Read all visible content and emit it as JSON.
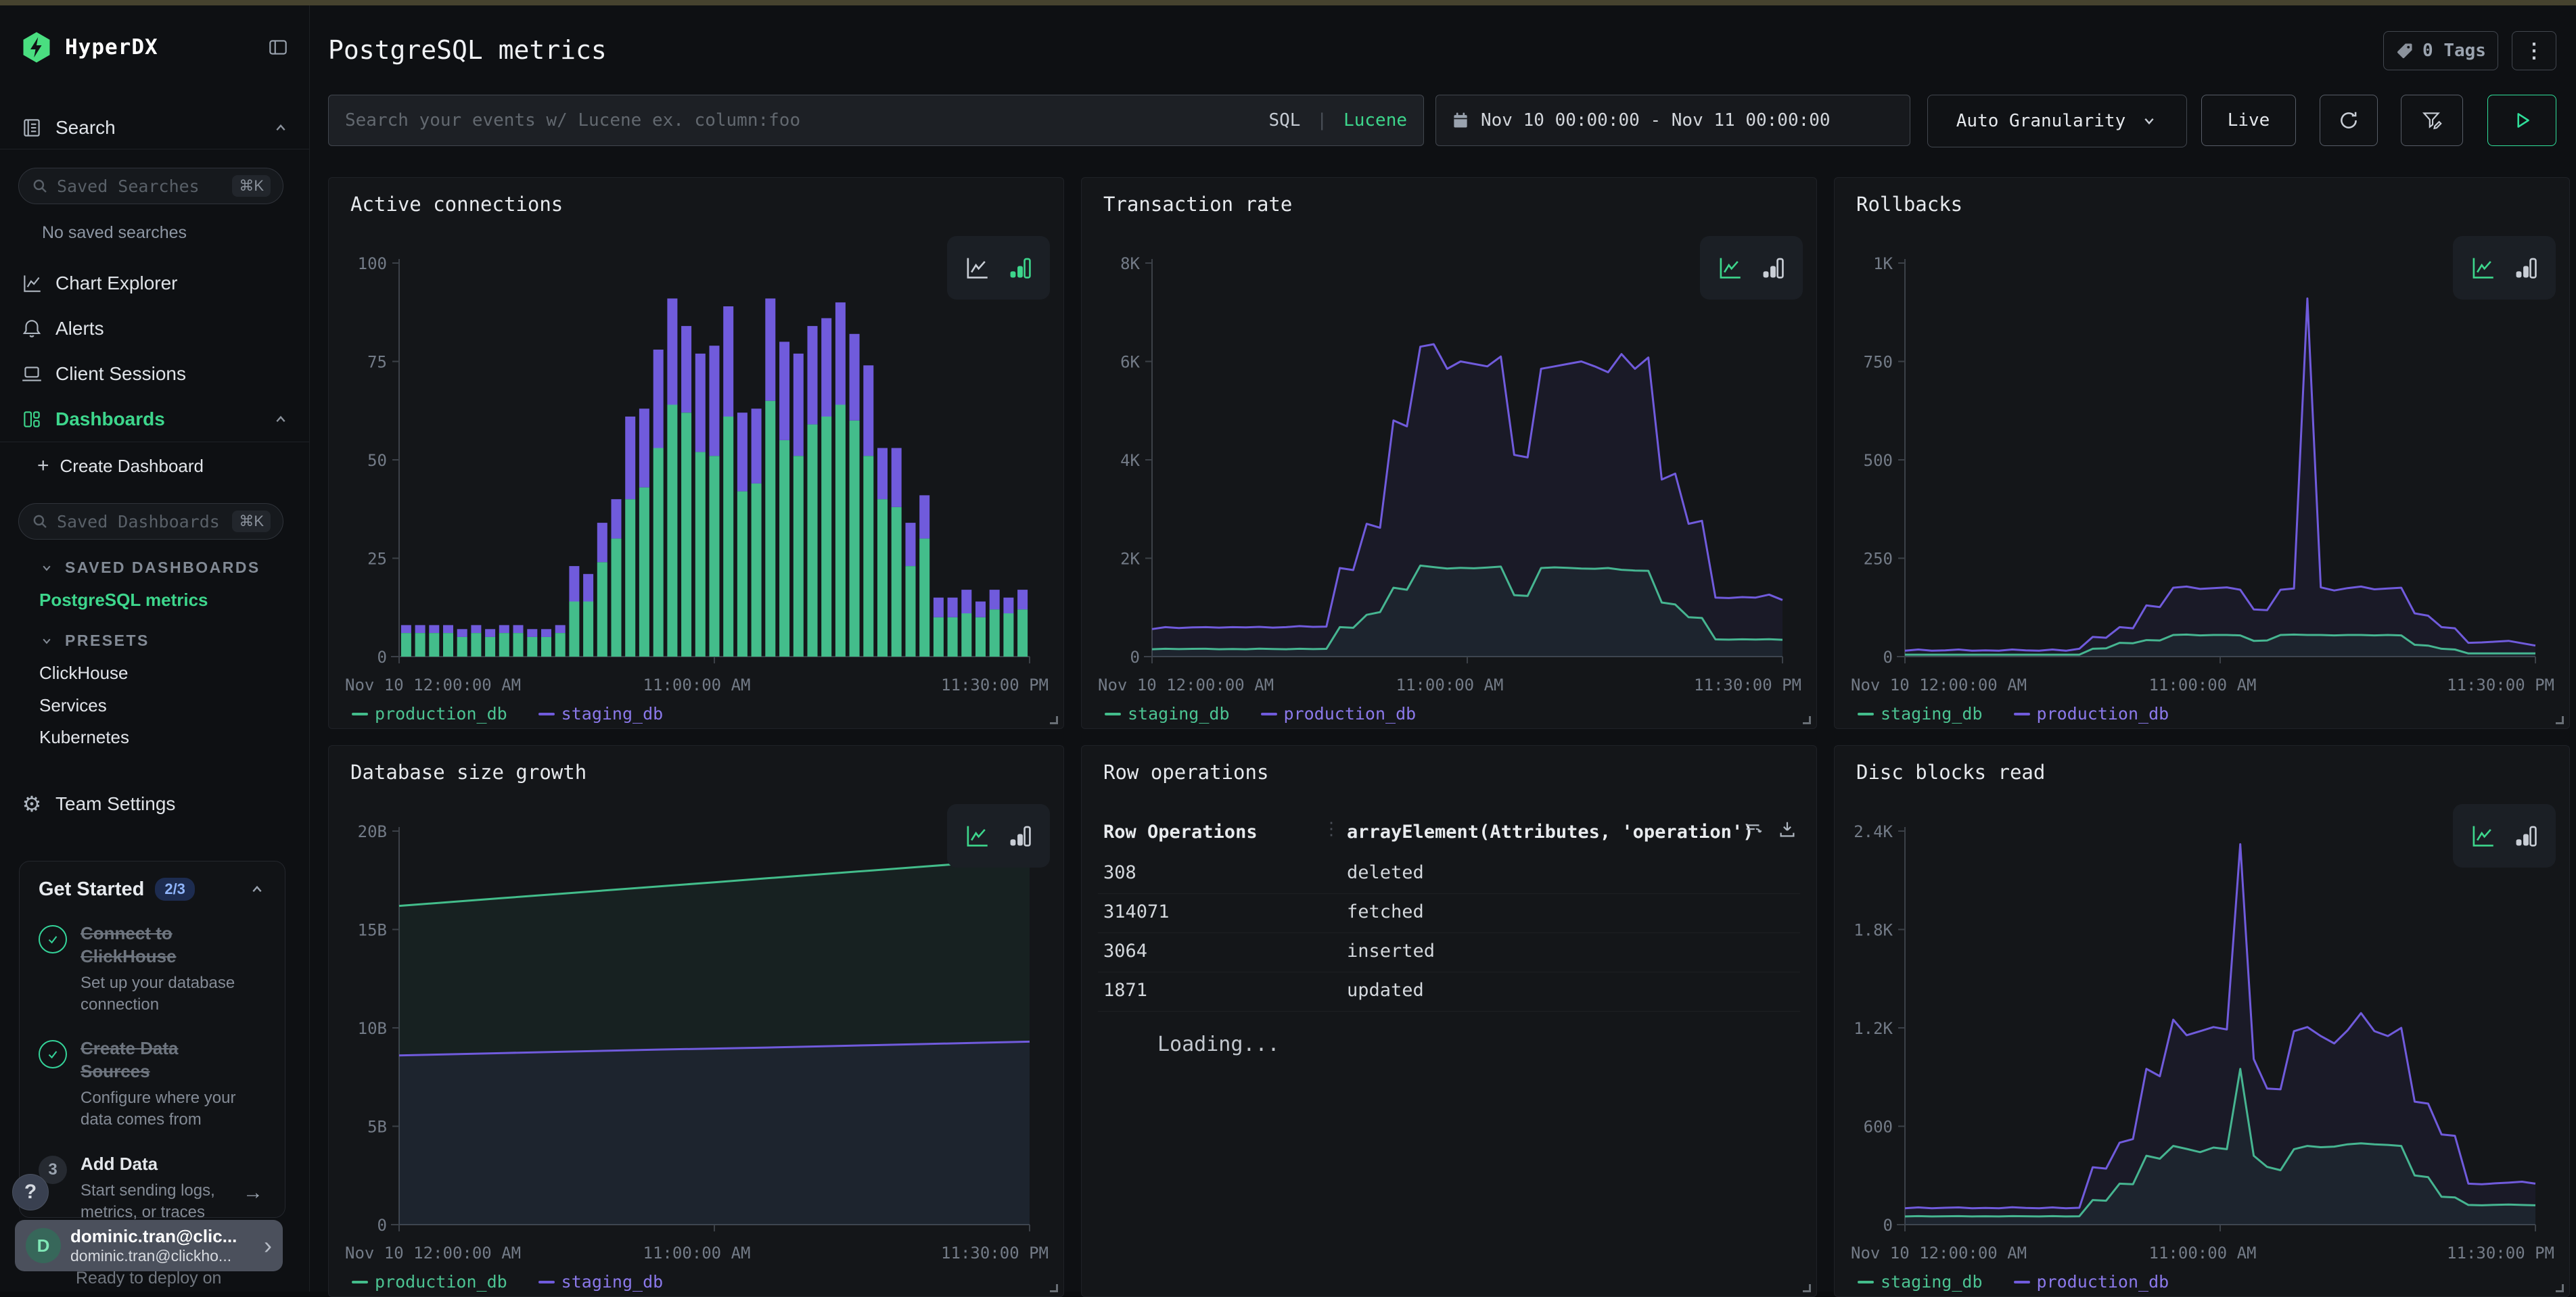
{
  "icons": {
    "shortcut": "⌘K",
    "kebab": "⋮",
    "chevron_right": "›",
    "arrow_right": "→",
    "plus": "+",
    "help": "?",
    "legend_dash": "—",
    "gear": "⚙",
    "col_dots": "⋮"
  },
  "colors": {
    "page_bg": "#0e1013",
    "panel_bg": "#141619",
    "top_strip": "#46432f",
    "accent_green": "#3dd68c",
    "series_green": "#43bd8b",
    "series_purple": "#705bdc",
    "legend_green": "#4cc392",
    "legend_purple": "#8b79ea",
    "badge_bg": "#1d2c50",
    "badge_text": "#8fb4fa"
  },
  "sidebar": {
    "brand": "HyperDX",
    "search_label": "Search",
    "saved_searches_placeholder": "Saved Searches",
    "no_saved": "No saved searches",
    "nav": [
      {
        "label": "Chart Explorer"
      },
      {
        "label": "Alerts"
      },
      {
        "label": "Client Sessions"
      },
      {
        "label": "Dashboards"
      }
    ],
    "create_dashboard": "Create Dashboard",
    "saved_dashboards_placeholder": "Saved Dashboards",
    "group1_label": "SAVED DASHBOARDS",
    "group1_item": "PostgreSQL metrics",
    "group2_label": "PRESETS",
    "group2_items": [
      {
        "label": "ClickHouse"
      },
      {
        "label": "Services"
      },
      {
        "label": "Kubernetes"
      }
    ],
    "team_settings": "Team Settings",
    "get_started": {
      "title": "Get Started",
      "badge": "2/3",
      "items": [
        {
          "title": "Connect to ClickHouse",
          "subtitle": "Set up your database connection",
          "done": true
        },
        {
          "title": "Create Data Sources",
          "subtitle": "Configure where your data comes from",
          "done": true
        },
        {
          "title": "Add Data",
          "subtitle": "Start sending logs, metrics, or traces",
          "step": "3",
          "done": false
        }
      ]
    },
    "user": {
      "initial": "D",
      "name": "dominic.tran@clic...",
      "email": "dominic.tran@clickho...",
      "behind_text": "Ready to deploy on"
    }
  },
  "header": {
    "title": "PostgreSQL metrics",
    "tags_label": "0 Tags"
  },
  "toolbar": {
    "search_placeholder": "Search your events w/ Lucene ex. column:foo",
    "sql": "SQL",
    "divider": "|",
    "lucene": "Lucene",
    "date_range": "Nov 10 00:00:00 - Nov 11 00:00:00",
    "granularity": "Auto Granularity",
    "live": "Live"
  },
  "chart_data": [
    {
      "type": "bar",
      "stacked": true,
      "slug": "active-connections",
      "title": "Active connections",
      "active_view": "bar",
      "ylim": [
        0,
        100
      ],
      "y_ticks": [
        "0",
        "25",
        "50",
        "75",
        "100"
      ],
      "grid": false,
      "legend_position": "bottom",
      "x_ticks": [
        "Nov 10 12:00:00 AM",
        "11:00:00 AM",
        "11:30:00 PM"
      ],
      "series": [
        {
          "name": "production_db",
          "color": "green",
          "values": [
            6,
            6,
            6,
            6,
            5,
            6,
            5,
            6,
            6,
            5,
            5,
            6,
            14,
            14,
            24,
            30,
            40,
            43,
            53,
            64,
            62,
            52,
            51,
            61,
            42,
            44,
            65,
            55,
            51,
            59,
            61,
            64,
            60,
            51,
            40,
            38,
            23,
            30,
            10,
            10,
            11,
            10,
            12,
            11,
            12
          ]
        },
        {
          "name": "staging_db",
          "color": "purple",
          "values": [
            2,
            2,
            2,
            2,
            2,
            2,
            2,
            2,
            2,
            2,
            2,
            2,
            9,
            7,
            10,
            10,
            21,
            20,
            25,
            27,
            22,
            25,
            28,
            28,
            20,
            19,
            26,
            25,
            26,
            25,
            25,
            26,
            22,
            23,
            13,
            15,
            11,
            11,
            5,
            5,
            6,
            4,
            5,
            4,
            5
          ]
        }
      ]
    },
    {
      "type": "line",
      "slug": "transaction-rate",
      "title": "Transaction rate",
      "active_view": "line",
      "ylim": [
        0,
        8000
      ],
      "y_ticks": [
        "0",
        "2K",
        "4K",
        "6K",
        "8K"
      ],
      "grid": false,
      "legend_position": "bottom",
      "x_ticks": [
        "Nov 10 12:00:00 AM",
        "11:00:00 AM",
        "11:30:00 PM"
      ],
      "series": [
        {
          "name": "staging_db",
          "color": "green",
          "values": [
            150,
            160,
            152,
            158,
            160,
            150,
            156,
            150,
            162,
            155,
            150,
            160,
            152,
            158,
            600,
            585,
            850,
            905,
            1400,
            1360,
            1850,
            1820,
            1790,
            1805,
            1795,
            1810,
            1830,
            1250,
            1235,
            1800,
            1815,
            1805,
            1790,
            1785,
            1800,
            1765,
            1750,
            1745,
            1100,
            1060,
            800,
            785,
            350,
            345,
            352,
            348,
            355,
            342
          ]
        },
        {
          "name": "production_db",
          "color": "purple",
          "values": [
            560,
            600,
            580,
            595,
            600,
            590,
            600,
            595,
            605,
            590,
            600,
            620,
            605,
            610,
            1800,
            1760,
            2700,
            2620,
            4800,
            4680,
            6300,
            6350,
            5850,
            6000,
            5950,
            5900,
            6100,
            4100,
            4050,
            5850,
            5900,
            5950,
            6000,
            5900,
            5780,
            6150,
            5850,
            6080,
            3600,
            3720,
            2700,
            2760,
            1200,
            1190,
            1210,
            1200,
            1260,
            1150
          ]
        }
      ]
    },
    {
      "type": "line",
      "slug": "rollbacks",
      "title": "Rollbacks",
      "active_view": "line",
      "ylim": [
        0,
        1000
      ],
      "y_ticks": [
        "0",
        "250",
        "500",
        "750",
        "1K"
      ],
      "grid": false,
      "legend_position": "bottom",
      "x_ticks": [
        "Nov 10 12:00:00 AM",
        "11:00:00 AM",
        "11:30:00 PM"
      ],
      "series": [
        {
          "name": "staging_db",
          "color": "green",
          "values": [
            5,
            5,
            5,
            5,
            5,
            5,
            5,
            5,
            5,
            5,
            5,
            5,
            5,
            5,
            20,
            21,
            35,
            34,
            42,
            41,
            55,
            56,
            54,
            55,
            55,
            54,
            40,
            41,
            55,
            56,
            55,
            55,
            54,
            55,
            55,
            54,
            55,
            54,
            30,
            28,
            20,
            18,
            8,
            8,
            8,
            8,
            8,
            8
          ]
        },
        {
          "name": "production_db",
          "color": "purple",
          "values": [
            15,
            18,
            15,
            16,
            18,
            15,
            16,
            15,
            18,
            16,
            15,
            18,
            15,
            20,
            50,
            48,
            75,
            72,
            130,
            126,
            175,
            178,
            172,
            174,
            176,
            170,
            120,
            118,
            170,
            173,
            910,
            176,
            168,
            174,
            178,
            171,
            173,
            175,
            110,
            104,
            75,
            72,
            35,
            36,
            38,
            40,
            34,
            28
          ]
        }
      ]
    },
    {
      "type": "line",
      "slug": "database-size-growth",
      "title": "Database size growth",
      "active_view": "line",
      "ylim": [
        0,
        20
      ],
      "y_ticks": [
        "0",
        "5B",
        "10B",
        "15B",
        "20B"
      ],
      "unit": "billions",
      "grid": false,
      "legend_position": "bottom",
      "x_ticks": [
        "Nov 10 12:00:00 AM",
        "11:00:00 AM",
        "11:30:00 PM"
      ],
      "series": [
        {
          "name": "production_db",
          "color": "green",
          "values": [
            16.2,
            16.4,
            16.6,
            16.8,
            17.0,
            17.2,
            17.4,
            17.6,
            17.8,
            18.0,
            18.2,
            18.4,
            18.6
          ]
        },
        {
          "name": "staging_db",
          "color": "purple",
          "values": [
            8.6,
            8.66,
            8.72,
            8.78,
            8.84,
            8.9,
            8.95,
            9.0,
            9.06,
            9.12,
            9.18,
            9.24,
            9.3
          ]
        }
      ]
    },
    {
      "type": "table",
      "slug": "row-operations",
      "title": "Row operations",
      "columns": [
        "Row Operations",
        "arrayElement(Attributes, 'operation')"
      ],
      "rows": [
        [
          "308",
          "deleted"
        ],
        [
          "314071",
          "fetched"
        ],
        [
          "3064",
          "inserted"
        ],
        [
          "1871",
          "updated"
        ]
      ],
      "status": "Loading..."
    },
    {
      "type": "line",
      "slug": "disc-blocks-read",
      "title": "Disc blocks read",
      "active_view": "line",
      "ylim": [
        0,
        2400
      ],
      "y_ticks": [
        "0",
        "600",
        "1.2K",
        "1.8K",
        "2.4K"
      ],
      "grid": false,
      "legend_position": "bottom",
      "x_ticks": [
        "Nov 10 12:00:00 AM",
        "11:00:00 AM",
        "11:30:00 PM"
      ],
      "series": [
        {
          "name": "staging_db",
          "color": "green",
          "values": [
            50,
            52,
            50,
            51,
            52,
            50,
            51,
            50,
            52,
            51,
            50,
            52,
            50,
            51,
            150,
            146,
            250,
            246,
            420,
            402,
            480,
            462,
            442,
            470,
            460,
            950,
            420,
            352,
            332,
            460,
            480,
            472,
            476,
            490,
            496,
            490,
            486,
            480,
            300,
            290,
            170,
            166,
            120,
            118,
            121,
            123,
            120,
            118
          ]
        },
        {
          "name": "production_db",
          "color": "purple",
          "values": [
            100,
            105,
            100,
            103,
            105,
            100,
            102,
            100,
            106,
            102,
            100,
            105,
            100,
            103,
            350,
            342,
            500,
            522,
            950,
            905,
            1250,
            1155,
            1180,
            1205,
            1190,
            2320,
            1010,
            830,
            825,
            1180,
            1205,
            1150,
            1105,
            1185,
            1290,
            1180,
            1150,
            1200,
            750,
            738,
            550,
            542,
            250,
            246,
            252,
            256,
            262,
            250
          ]
        }
      ]
    }
  ]
}
